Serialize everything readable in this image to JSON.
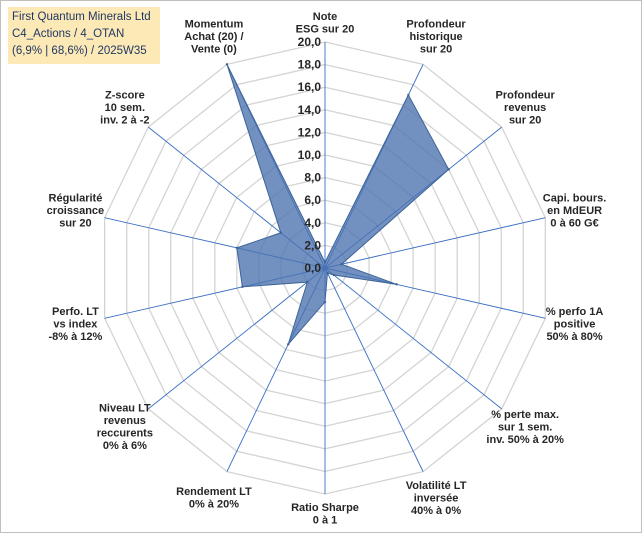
{
  "header": {
    "line1": "First Quantum Minerals Ltd",
    "line2": "C4_Actions / 4_OTAN",
    "line3": "(6,9% | 68,6%) / 2025W35"
  },
  "chart_data": {
    "type": "radar",
    "rlim": [
      0,
      20
    ],
    "ticks": [
      "0,0",
      "2,0",
      "4,0",
      "6,0",
      "8,0",
      "10,0",
      "12,0",
      "14,0",
      "16,0",
      "18,0",
      "20,0"
    ],
    "grid": true,
    "categories": [
      [
        "Note",
        "ESG sur 20"
      ],
      [
        "Profondeur",
        "historique",
        "sur 20"
      ],
      [
        "Profondeur",
        "revenus",
        "sur 20"
      ],
      [
        "Capi. bours.",
        "en MdEUR",
        "0 à 60 G€"
      ],
      [
        "% perfo 1A",
        "positive",
        "50% à 80%"
      ],
      [
        "% perte max.",
        "sur 1 sem.",
        "inv. 50% à 20%"
      ],
      [
        "Volatilité LT",
        "inversée",
        "40% à 0%"
      ],
      [
        "Ratio Sharpe",
        "0 à 1"
      ],
      [
        "Rendement LT",
        "0% à 20%"
      ],
      [
        "Niveau LT",
        "revenus",
        "reccurents",
        "0% à 6%"
      ],
      [
        "Perfo. LT",
        "vs index",
        "-8% à 12%"
      ],
      [
        "Régularité",
        "croissance",
        "sur 20"
      ],
      [
        "Z-score",
        "10 sem.",
        "inv. 2 à -2"
      ],
      [
        "Momentum",
        "Achat (20) /",
        "Vente (0)"
      ]
    ],
    "series": [
      {
        "values": [
          0.5,
          17.0,
          14.0,
          1.5,
          6.5,
          1.0,
          0.5,
          3.0,
          7.5,
          2.0,
          7.5,
          8.0,
          5.0,
          20.0
        ],
        "color": "#4a72b0"
      }
    ]
  }
}
